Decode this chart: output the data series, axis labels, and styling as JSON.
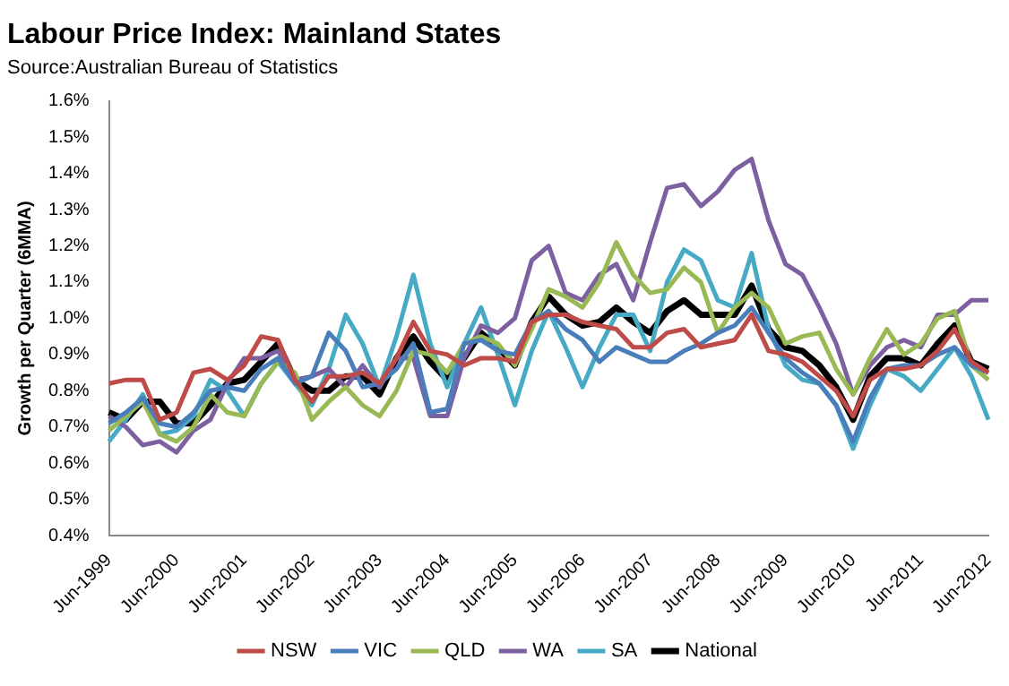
{
  "chart_data": {
    "type": "line",
    "title": "Labour Price Index: Mainland States",
    "annotations": [
      "Source:Australian Bureau of Statistics"
    ],
    "ylabel": "Growth per Quarter (6MMA)",
    "categories": [
      "Jun-1999",
      null,
      null,
      null,
      "Jun-2000",
      null,
      null,
      null,
      "Jun-2001",
      null,
      null,
      null,
      "Jun-2002",
      null,
      null,
      null,
      "Jun-2003",
      null,
      null,
      null,
      "Jun-2004",
      null,
      null,
      null,
      "Jun-2005",
      null,
      null,
      null,
      "Jun-2006",
      null,
      null,
      null,
      "Jun-2007",
      null,
      null,
      null,
      "Jun-2008",
      null,
      null,
      null,
      "Jun-2009",
      null,
      null,
      null,
      "Jun-2010",
      null,
      null,
      null,
      "Jun-2011",
      null,
      null,
      null,
      "Jun-2012"
    ],
    "series": [
      {
        "name": "NSW",
        "color": "#be4b48",
        "values": [
          0.82,
          0.83,
          0.83,
          0.72,
          0.74,
          0.85,
          0.86,
          0.83,
          0.87,
          0.95,
          0.94,
          0.83,
          0.77,
          0.84,
          0.84,
          0.85,
          0.82,
          0.89,
          0.99,
          0.91,
          0.9,
          0.87,
          0.89,
          0.89,
          0.88,
          0.99,
          1.01,
          1.01,
          0.99,
          0.98,
          0.97,
          0.92,
          0.92,
          0.96,
          0.97,
          0.92,
          0.93,
          0.94,
          1.01,
          0.91,
          0.9,
          0.88,
          0.84,
          0.8,
          0.73,
          0.83,
          0.86,
          0.86,
          0.87,
          0.91,
          0.97,
          0.88,
          0.85
        ]
      },
      {
        "name": "VIC",
        "color": "#4a7ebb",
        "values": [
          0.71,
          0.74,
          0.78,
          0.71,
          0.7,
          0.74,
          0.8,
          0.81,
          0.8,
          0.86,
          0.89,
          0.82,
          0.84,
          0.96,
          0.91,
          0.81,
          0.82,
          0.86,
          0.93,
          0.74,
          0.75,
          0.93,
          0.94,
          0.91,
          0.9,
          0.99,
          1.02,
          0.97,
          0.94,
          0.88,
          0.92,
          0.9,
          0.88,
          0.88,
          0.91,
          0.93,
          0.96,
          0.98,
          1.03,
          0.96,
          0.89,
          0.85,
          0.82,
          0.76,
          0.66,
          0.78,
          0.86,
          0.87,
          0.87,
          0.9,
          0.92,
          0.87,
          0.85
        ]
      },
      {
        "name": "QLD",
        "color": "#98b954",
        "values": [
          0.69,
          0.73,
          0.77,
          0.68,
          0.66,
          0.7,
          0.79,
          0.74,
          0.73,
          0.82,
          0.88,
          0.85,
          0.72,
          0.77,
          0.81,
          0.76,
          0.73,
          0.8,
          0.91,
          0.9,
          0.85,
          0.93,
          0.95,
          0.93,
          0.87,
          0.97,
          1.08,
          1.06,
          1.03,
          1.1,
          1.21,
          1.12,
          1.07,
          1.08,
          1.14,
          1.1,
          0.96,
          1.03,
          1.07,
          1.03,
          0.93,
          0.95,
          0.96,
          0.86,
          0.79,
          0.89,
          0.97,
          0.9,
          0.93,
          1.0,
          1.02,
          0.87,
          0.83
        ]
      },
      {
        "name": "WA",
        "color": "#7d60a0",
        "values": [
          0.73,
          0.7,
          0.65,
          0.66,
          0.63,
          0.69,
          0.72,
          0.82,
          0.89,
          0.89,
          0.91,
          0.83,
          0.84,
          0.86,
          0.81,
          0.87,
          0.81,
          0.89,
          0.89,
          0.73,
          0.73,
          0.89,
          0.98,
          0.96,
          1.0,
          1.16,
          1.2,
          1.07,
          1.05,
          1.12,
          1.15,
          1.05,
          1.21,
          1.36,
          1.37,
          1.31,
          1.35,
          1.41,
          1.44,
          1.27,
          1.15,
          1.12,
          1.03,
          0.93,
          0.79,
          0.87,
          0.92,
          0.94,
          0.92,
          1.01,
          1.01,
          1.05,
          1.05
        ]
      },
      {
        "name": "SA",
        "color": "#46aac5",
        "values": [
          0.66,
          0.72,
          0.79,
          0.68,
          0.69,
          0.73,
          0.83,
          0.8,
          0.73,
          0.82,
          0.88,
          0.82,
          0.76,
          0.86,
          1.01,
          0.93,
          0.81,
          0.95,
          1.12,
          0.93,
          0.81,
          0.93,
          1.03,
          0.9,
          0.76,
          0.91,
          1.02,
          0.92,
          0.81,
          0.92,
          1.01,
          1.01,
          0.91,
          1.1,
          1.19,
          1.16,
          1.05,
          1.03,
          1.18,
          0.97,
          0.87,
          0.83,
          0.82,
          0.76,
          0.64,
          0.76,
          0.86,
          0.84,
          0.8,
          0.86,
          0.92,
          0.84,
          0.72
        ]
      },
      {
        "name": "National",
        "color": "#000000",
        "values": [
          0.74,
          0.72,
          0.77,
          0.77,
          0.71,
          0.71,
          0.76,
          0.82,
          0.83,
          0.88,
          0.93,
          0.83,
          0.8,
          0.8,
          0.84,
          0.84,
          0.79,
          0.89,
          0.95,
          0.88,
          0.83,
          0.89,
          0.96,
          0.92,
          0.87,
          0.99,
          1.06,
          1.01,
          0.98,
          0.99,
          1.03,
          0.99,
          0.96,
          1.02,
          1.05,
          1.01,
          1.01,
          1.01,
          1.09,
          0.97,
          0.92,
          0.91,
          0.87,
          0.81,
          0.72,
          0.84,
          0.89,
          0.89,
          0.87,
          0.93,
          0.98,
          0.88,
          0.86
        ]
      }
    ],
    "ylim": [
      0.4,
      1.6
    ],
    "yticks": [
      {
        "value": 0.4,
        "label": "0.4%"
      },
      {
        "value": 0.5,
        "label": "0.5%"
      },
      {
        "value": 0.6,
        "label": "0.6%"
      },
      {
        "value": 0.7,
        "label": "0.7%"
      },
      {
        "value": 0.8,
        "label": "0.8%"
      },
      {
        "value": 0.9,
        "label": "0.9%"
      },
      {
        "value": 1.0,
        "label": "1.0%"
      },
      {
        "value": 1.1,
        "label": "1.1%"
      },
      {
        "value": 1.2,
        "label": "1.2%"
      },
      {
        "value": 1.3,
        "label": "1.3%"
      },
      {
        "value": 1.4,
        "label": "1.4%"
      },
      {
        "value": 1.5,
        "label": "1.5%"
      },
      {
        "value": 1.6,
        "label": "1.6%"
      }
    ],
    "grid": false,
    "legend": "bottom",
    "marker": "none",
    "line_style": "solid"
  }
}
